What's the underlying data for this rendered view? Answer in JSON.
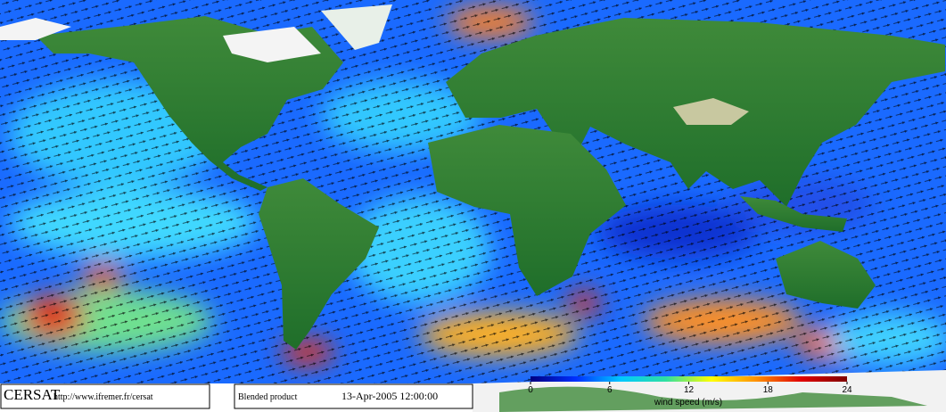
{
  "footer": {
    "logo": "CERSAT",
    "url": "http://www.ifremer.fr/cersat",
    "product": "Blended product",
    "date": "13-Apr-2005 12:00:00"
  },
  "colorbar": {
    "label": "wind speed (m/s)",
    "lim": [
      0,
      24
    ],
    "ticks": [
      0,
      6,
      12,
      18,
      24
    ],
    "colors": [
      "#000080",
      "#0030ff",
      "#00c8ff",
      "#30e0a0",
      "#ffff00",
      "#ff9000",
      "#e00000",
      "#800000"
    ]
  }
}
